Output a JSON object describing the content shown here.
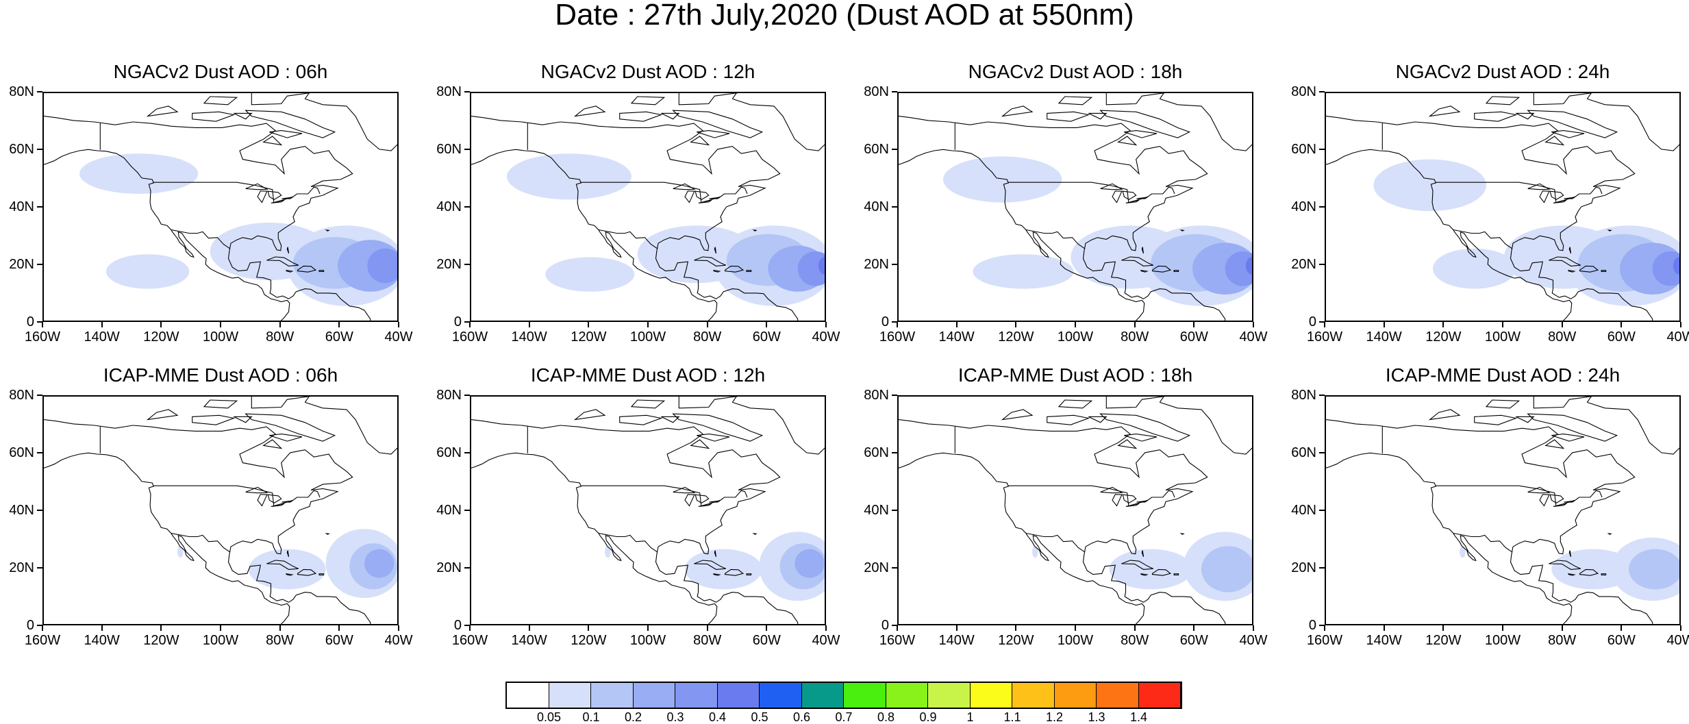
{
  "title": "Date : 27th July,2020 (Dust AOD at 550nm)",
  "panels": [
    {
      "title": "NGACv2 Dust AOD : 06h",
      "model": "NGACv2",
      "hour": "06h"
    },
    {
      "title": "NGACv2 Dust AOD : 12h",
      "model": "NGACv2",
      "hour": "12h"
    },
    {
      "title": "NGACv2 Dust AOD : 18h",
      "model": "NGACv2",
      "hour": "18h"
    },
    {
      "title": "NGACv2 Dust AOD : 24h",
      "model": "NGACv2",
      "hour": "24h"
    },
    {
      "title": "ICAP-MME Dust AOD : 06h",
      "model": "ICAP-MME",
      "hour": "06h"
    },
    {
      "title": "ICAP-MME Dust AOD : 12h",
      "model": "ICAP-MME",
      "hour": "12h"
    },
    {
      "title": "ICAP-MME Dust AOD : 18h",
      "model": "ICAP-MME",
      "hour": "18h"
    },
    {
      "title": "ICAP-MME Dust AOD : 24h",
      "model": "ICAP-MME",
      "hour": "24h"
    }
  ],
  "axes": {
    "lat_ticks": [
      "80N",
      "60N",
      "40N",
      "20N",
      "0"
    ],
    "lon_ticks": [
      "160W",
      "140W",
      "120W",
      "100W",
      "80W",
      "60W",
      "40W"
    ],
    "lat_range": [
      0,
      80
    ],
    "lon_range": [
      -160,
      -40
    ]
  },
  "colorbar": {
    "labels": [
      "0.05",
      "0.1",
      "0.2",
      "0.3",
      "0.4",
      "0.5",
      "0.6",
      "0.7",
      "0.8",
      "0.9",
      "1",
      "1.1",
      "1.2",
      "1.3",
      "1.4"
    ],
    "colors": [
      "#ffffff",
      "#d6e0fa",
      "#b4c6f6",
      "#98adf3",
      "#8296f2",
      "#6a7bf0",
      "#1f60f2",
      "#079a8a",
      "#4aee0f",
      "#88f21a",
      "#c8f44a",
      "#fbfc1a",
      "#fdc117",
      "#fd9c10",
      "#fd7415",
      "#fc2a17"
    ]
  }
}
